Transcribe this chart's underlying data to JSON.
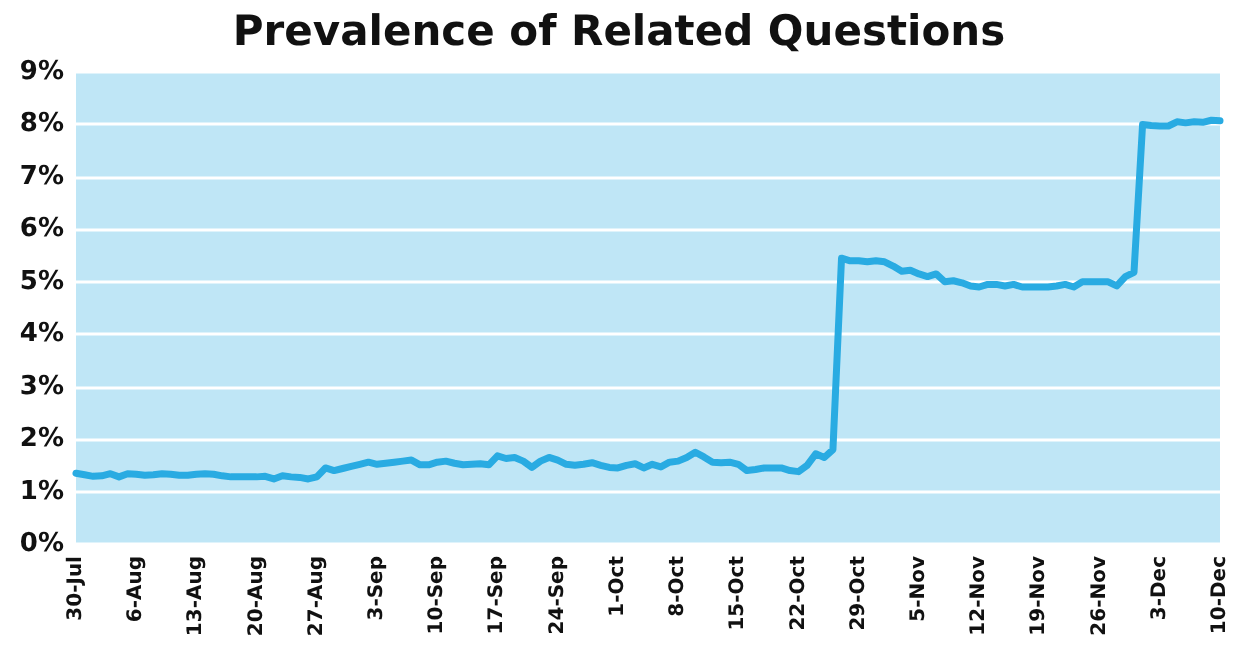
{
  "chart_data": {
    "type": "line",
    "title": "Prevalence of Related Questions",
    "categories": [
      "30-Jul",
      null,
      null,
      null,
      null,
      null,
      null,
      "6-Aug",
      null,
      null,
      null,
      null,
      null,
      null,
      "13-Aug",
      null,
      null,
      null,
      null,
      null,
      null,
      "20-Aug",
      null,
      null,
      null,
      null,
      null,
      null,
      "27-Aug",
      null,
      null,
      null,
      null,
      null,
      null,
      "3-Sep",
      null,
      null,
      null,
      null,
      null,
      null,
      "10-Sep",
      null,
      null,
      null,
      null,
      null,
      null,
      "17-Sep",
      null,
      null,
      null,
      null,
      null,
      null,
      "24-Sep",
      null,
      null,
      null,
      null,
      null,
      null,
      "1-Oct",
      null,
      null,
      null,
      null,
      null,
      null,
      "8-Oct",
      null,
      null,
      null,
      null,
      null,
      null,
      "15-Oct",
      null,
      null,
      null,
      null,
      null,
      null,
      "22-Oct",
      null,
      null,
      null,
      null,
      null,
      null,
      "29-Oct",
      null,
      null,
      null,
      null,
      null,
      null,
      "5-Nov",
      null,
      null,
      null,
      null,
      null,
      null,
      "12-Nov",
      null,
      null,
      null,
      null,
      null,
      null,
      "19-Nov",
      null,
      null,
      null,
      null,
      null,
      null,
      "26-Nov",
      null,
      null,
      null,
      null,
      null,
      null,
      "3-Dec",
      null,
      null,
      null,
      null,
      null,
      null,
      "10-Dec"
    ],
    "series": [
      {
        "color": "#29abe2",
        "values": [
          1.35,
          1.32,
          1.29,
          1.3,
          1.34,
          1.28,
          1.34,
          1.33,
          1.31,
          1.32,
          1.34,
          1.33,
          1.31,
          1.31,
          1.33,
          1.34,
          1.33,
          1.3,
          1.28,
          1.28,
          1.28,
          1.28,
          1.29,
          1.24,
          1.3,
          1.28,
          1.27,
          1.24,
          1.28,
          1.45,
          1.4,
          1.44,
          1.48,
          1.52,
          1.56,
          1.52,
          1.54,
          1.56,
          1.58,
          1.6,
          1.51,
          1.51,
          1.56,
          1.58,
          1.54,
          1.51,
          1.52,
          1.53,
          1.51,
          1.68,
          1.63,
          1.65,
          1.58,
          1.46,
          1.58,
          1.65,
          1.6,
          1.52,
          1.5,
          1.52,
          1.55,
          1.5,
          1.46,
          1.45,
          1.5,
          1.53,
          1.45,
          1.52,
          1.47,
          1.56,
          1.58,
          1.65,
          1.75,
          1.66,
          1.56,
          1.55,
          1.56,
          1.52,
          1.4,
          1.42,
          1.45,
          1.45,
          1.45,
          1.4,
          1.38,
          1.5,
          1.72,
          1.65,
          1.8,
          5.45,
          5.4,
          5.4,
          5.38,
          5.4,
          5.38,
          5.3,
          5.2,
          5.22,
          5.15,
          5.1,
          5.15,
          5.0,
          5.02,
          4.98,
          4.92,
          4.9,
          4.95,
          4.95,
          4.92,
          4.95,
          4.9,
          4.9,
          4.9,
          4.9,
          4.92,
          4.95,
          4.9,
          5.0,
          5.0,
          5.0,
          5.0,
          4.92,
          5.1,
          5.18,
          8.0,
          7.98,
          7.97,
          7.97,
          8.05,
          8.03,
          8.05,
          8.04,
          8.08,
          8.07
        ]
      }
    ],
    "ylim": [
      0,
      9
    ],
    "yticks": [
      {
        "value": 0,
        "label": "0%"
      },
      {
        "value": 1,
        "label": "1%"
      },
      {
        "value": 2,
        "label": "2%"
      },
      {
        "value": 3,
        "label": "3%"
      },
      {
        "value": 4,
        "label": "4%"
      },
      {
        "value": 5,
        "label": "5%"
      },
      {
        "value": 6,
        "label": "6%"
      },
      {
        "value": 7,
        "label": "7%"
      },
      {
        "value": 8,
        "label": "8%"
      },
      {
        "value": 9,
        "label": "9%"
      }
    ],
    "grid": "y",
    "marker": "none",
    "line_style": "solid"
  }
}
